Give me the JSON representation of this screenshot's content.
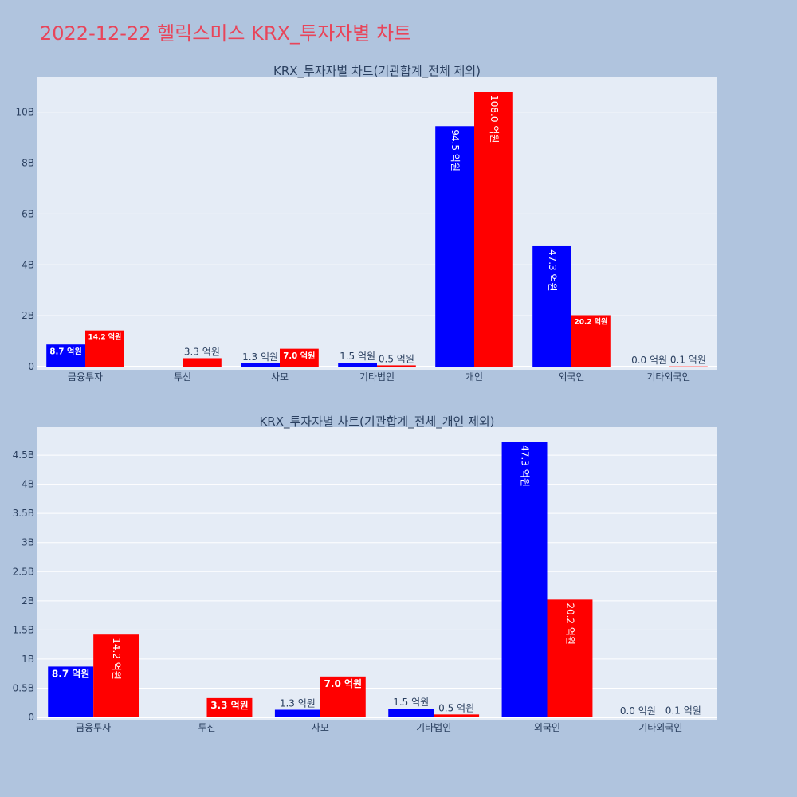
{
  "page_title": "2022-12-22 헬릭스미스 KRX_투자자별 차트",
  "colors": {
    "background": "#b0c4de",
    "plot_bg": "#e5ecf6",
    "series_1": "#0000ff",
    "series_2": "#ff0000",
    "title": "#e8455a",
    "text": "#2a3f5f"
  },
  "chart_data": [
    {
      "type": "bar",
      "title": "KRX_투자자별 차트(기관합계_전체 제외)",
      "categories": [
        "금융투자",
        "투신",
        "사모",
        "기타법인",
        "개인",
        "외국인",
        "기타외국인"
      ],
      "series": [
        {
          "values": [
            870000000,
            0,
            130000000,
            150000000,
            9450000000,
            4730000000,
            0
          ],
          "labels": [
            "8.7 억원",
            "",
            "1.3 억원",
            "1.5 억원",
            "94.5 억원",
            "47.3 억원",
            "0.0 억원"
          ]
        },
        {
          "values": [
            1420000000,
            330000000,
            700000000,
            50000000,
            10800000000,
            2020000000,
            10000000
          ],
          "labels": [
            "14.2 억원",
            "3.3 억원",
            "7.0 억원",
            "0.5 억원",
            "108.0 억원",
            "20.2 억원",
            "0.1 억원"
          ]
        }
      ],
      "yticks": [
        "0",
        "2B",
        "4B",
        "6B",
        "8B",
        "10B"
      ],
      "ytick_values": [
        0,
        2000000000,
        4000000000,
        6000000000,
        8000000000,
        10000000000
      ],
      "ylim": [
        0,
        11400000000
      ],
      "grid": true
    },
    {
      "type": "bar",
      "title": "KRX_투자자별 차트(기관합계_전체_개인 제외)",
      "categories": [
        "금융투자",
        "투신",
        "사모",
        "기타법인",
        "외국인",
        "기타외국인"
      ],
      "series": [
        {
          "values": [
            870000000,
            0,
            130000000,
            150000000,
            4730000000,
            0
          ],
          "labels": [
            "8.7 억원",
            "",
            "1.3 억원",
            "1.5 억원",
            "47.3 억원",
            "0.0 억원"
          ]
        },
        {
          "values": [
            1420000000,
            330000000,
            700000000,
            50000000,
            2020000000,
            10000000
          ],
          "labels": [
            "14.2 억원",
            "3.3 억원",
            "7.0 억원",
            "0.5 억원",
            "20.2 억원",
            "0.1 억원"
          ]
        }
      ],
      "yticks": [
        "0",
        "0.5B",
        "1B",
        "1.5B",
        "2B",
        "2.5B",
        "3B",
        "3.5B",
        "4B",
        "4.5B"
      ],
      "ytick_values": [
        0,
        500000000,
        1000000000,
        1500000000,
        2000000000,
        2500000000,
        3000000000,
        3500000000,
        4000000000,
        4500000000
      ],
      "ylim": [
        0,
        4980000000
      ],
      "grid": true
    }
  ]
}
